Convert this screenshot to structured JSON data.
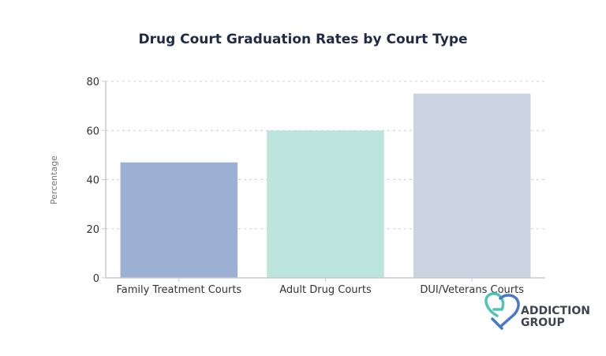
{
  "chart_data": {
    "type": "bar",
    "title": "Drug Court Graduation Rates by Court Type",
    "xlabel": "",
    "ylabel": "Percentage",
    "categories": [
      "Family Treatment Courts",
      "Adult Drug Courts",
      "DUI/Veterans Courts"
    ],
    "values": [
      47,
      60,
      75
    ],
    "colors": [
      "#9bb0d3",
      "#bbe5dc",
      "#cbd5e1"
    ],
    "ylim": [
      0,
      80
    ],
    "yticks": [
      0,
      20,
      40,
      60,
      80
    ],
    "grid": true,
    "legend": "none"
  },
  "logo": {
    "line1": "ADDICTION",
    "line2": "GROUP",
    "colors": [
      "#4fc3b4",
      "#4a78c8"
    ]
  }
}
